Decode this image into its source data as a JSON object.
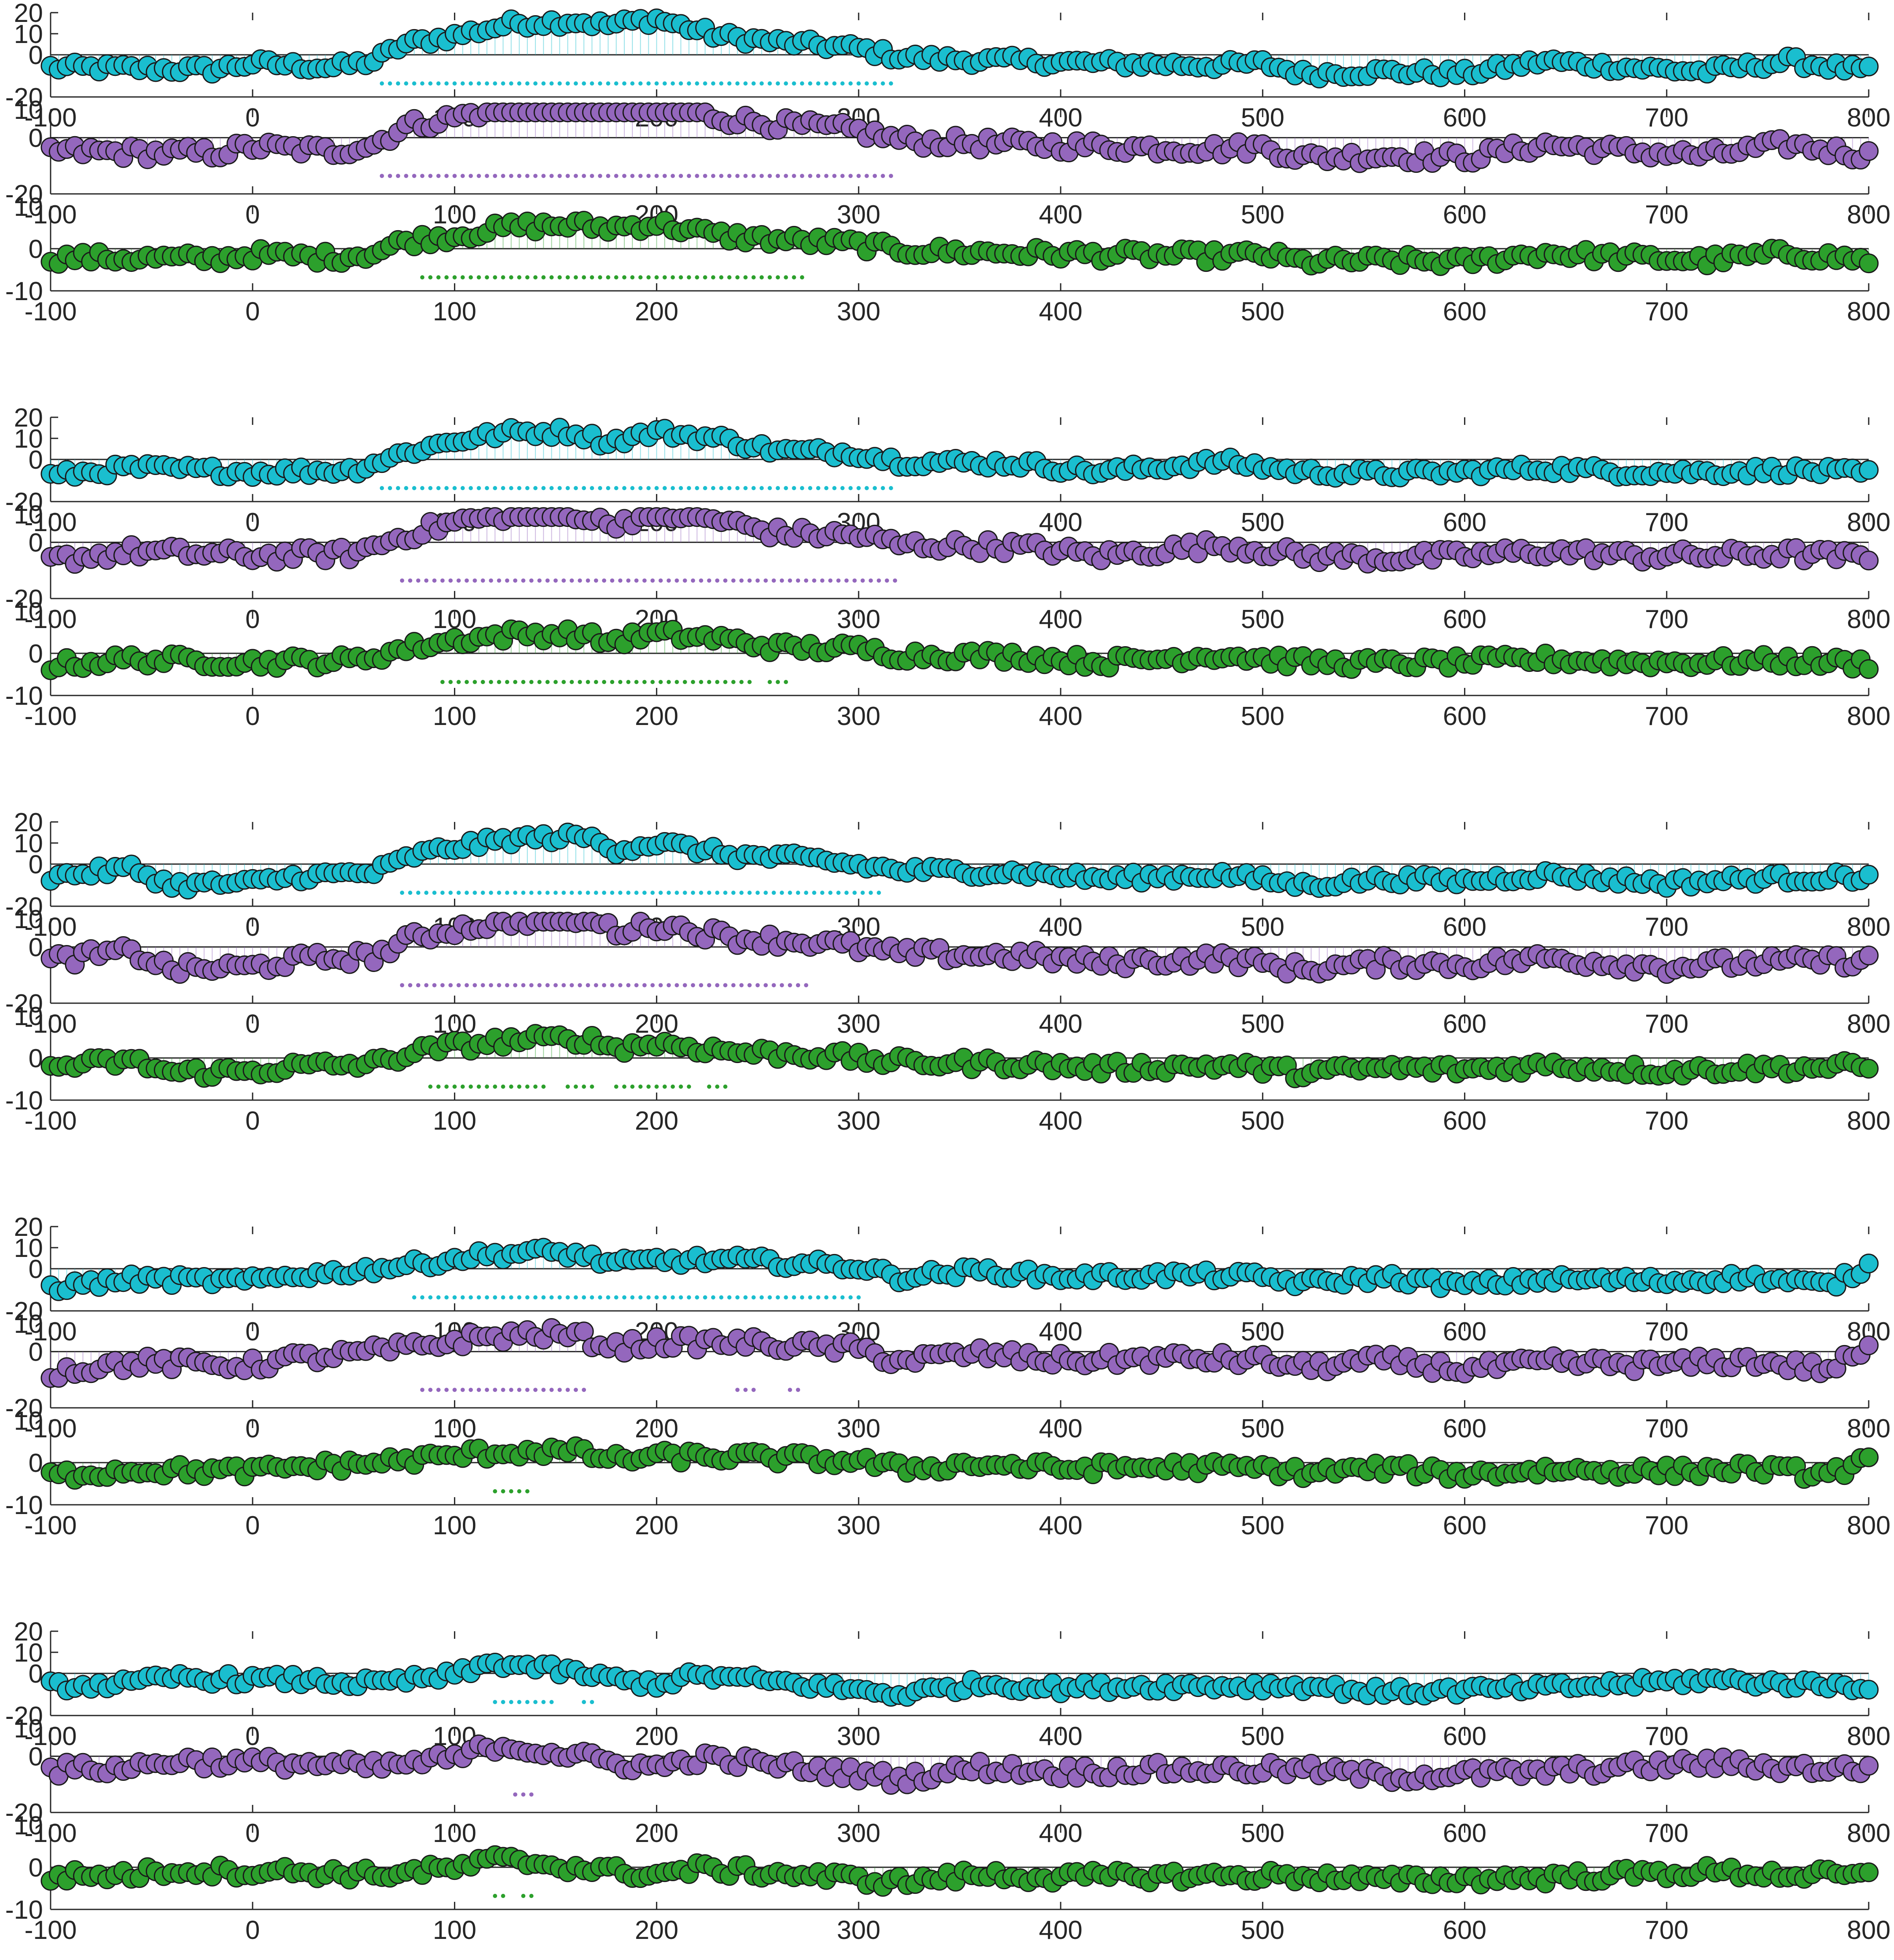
{
  "chart_data": {
    "type": "scatter",
    "layout": "5 groups x 3 stacked stem/scatter panels",
    "x_range": [
      -100,
      800
    ],
    "x_ticks": [
      -100,
      0,
      100,
      200,
      300,
      400,
      500,
      600,
      700,
      800
    ],
    "panel_types": [
      {
        "name": "",
        "color": "#1ABECF",
        "ylim": [
          -20,
          20
        ],
        "yticks": [
          -20,
          0,
          10,
          20
        ],
        "amp": 1.0
      },
      {
        "name": "",
        "color": "#9467BD",
        "ylim": [
          -20,
          10
        ],
        "yticks": [
          -20,
          0,
          10
        ],
        "amp": 0.8
      },
      {
        "name": "",
        "color": "#2CA02C",
        "ylim": [
          -10,
          10
        ],
        "yticks": [
          -10,
          0,
          10
        ],
        "amp": 0.35
      }
    ],
    "groups": [
      {
        "base": [
          [
            -100,
            -6
          ],
          [
            -20,
            -7
          ],
          [
            0,
            -4
          ],
          [
            40,
            -6
          ],
          [
            60,
            -3
          ],
          [
            75,
            5
          ],
          [
            100,
            9
          ],
          [
            130,
            15
          ],
          [
            160,
            16
          ],
          [
            175,
            14
          ],
          [
            200,
            17
          ],
          [
            230,
            9
          ],
          [
            260,
            6
          ],
          [
            300,
            3
          ],
          [
            320,
            -1
          ],
          [
            340,
            -2
          ],
          [
            380,
            -3
          ],
          [
            420,
            -4
          ],
          [
            480,
            -5
          ],
          [
            500,
            -4
          ],
          [
            520,
            -9
          ],
          [
            560,
            -8
          ],
          [
            600,
            -9
          ],
          [
            640,
            -3
          ],
          [
            680,
            -6
          ],
          [
            720,
            -8
          ],
          [
            760,
            -3
          ],
          [
            800,
            -8
          ]
        ],
        "sig": [
          [
            [
              64,
              318
            ]
          ],
          [
            [
              64,
              318
            ]
          ],
          [
            [
              84,
              272
            ]
          ]
        ]
      },
      {
        "base": [
          [
            -100,
            -8
          ],
          [
            -60,
            -4
          ],
          [
            0,
            -6
          ],
          [
            50,
            -5
          ],
          [
            75,
            3
          ],
          [
            100,
            9
          ],
          [
            130,
            13
          ],
          [
            160,
            13
          ],
          [
            175,
            8
          ],
          [
            200,
            13
          ],
          [
            230,
            10
          ],
          [
            260,
            4
          ],
          [
            300,
            3
          ],
          [
            320,
            -1
          ],
          [
            380,
            -2
          ],
          [
            420,
            -6
          ],
          [
            480,
            -1
          ],
          [
            520,
            -6
          ],
          [
            560,
            -7
          ],
          [
            600,
            -6
          ],
          [
            640,
            -4
          ],
          [
            680,
            -6
          ],
          [
            720,
            -6
          ],
          [
            760,
            -5
          ],
          [
            800,
            -7
          ]
        ],
        "sig": [
          [
            [
              64,
              318
            ]
          ],
          [
            [
              74,
              318
            ]
          ],
          [
            [
              94,
              246
            ],
            [
              256,
              264
            ]
          ]
        ]
      },
      {
        "base": [
          [
            -100,
            -6
          ],
          [
            -60,
            -2
          ],
          [
            -40,
            -10
          ],
          [
            0,
            -9
          ],
          [
            20,
            -6
          ],
          [
            60,
            -4
          ],
          [
            80,
            4
          ],
          [
            100,
            8
          ],
          [
            130,
            12
          ],
          [
            165,
            13
          ],
          [
            180,
            7
          ],
          [
            200,
            10
          ],
          [
            240,
            4
          ],
          [
            280,
            2
          ],
          [
            320,
            -3
          ],
          [
            380,
            -4
          ],
          [
            420,
            -7
          ],
          [
            480,
            -5
          ],
          [
            520,
            -10
          ],
          [
            560,
            -7
          ],
          [
            600,
            -8
          ],
          [
            640,
            -5
          ],
          [
            700,
            -9
          ],
          [
            740,
            -7
          ],
          [
            800,
            -6
          ]
        ],
        "sig": [
          [
            [
              74,
              310
            ]
          ],
          [
            [
              74,
              276
            ]
          ],
          [
            [
              88,
              146
            ],
            [
              156,
              170
            ],
            [
              180,
              216
            ],
            [
              226,
              236
            ]
          ]
        ]
      },
      {
        "base": [
          [
            -100,
            -9
          ],
          [
            -60,
            -5
          ],
          [
            0,
            -6
          ],
          [
            20,
            -3
          ],
          [
            40,
            -2
          ],
          [
            80,
            2
          ],
          [
            110,
            6
          ],
          [
            140,
            8
          ],
          [
            160,
            7
          ],
          [
            180,
            2
          ],
          [
            200,
            4
          ],
          [
            240,
            4
          ],
          [
            280,
            2
          ],
          [
            300,
            1
          ],
          [
            320,
            -4
          ],
          [
            360,
            -1
          ],
          [
            400,
            -4
          ],
          [
            460,
            -3
          ],
          [
            500,
            -4
          ],
          [
            520,
            -7
          ],
          [
            560,
            -4
          ],
          [
            600,
            -8
          ],
          [
            640,
            -5
          ],
          [
            700,
            -6
          ],
          [
            740,
            -4
          ],
          [
            780,
            -8
          ],
          [
            800,
            1
          ]
        ],
        "sig": [
          [
            [
              80,
              300
            ]
          ],
          [
            [
              84,
              166
            ],
            [
              240,
              250
            ],
            [
              266,
              272
            ]
          ],
          [
            [
              120,
              136
            ]
          ]
        ]
      },
      {
        "base": [
          [
            -100,
            -6
          ],
          [
            -60,
            -5
          ],
          [
            -40,
            -2
          ],
          [
            0,
            -3
          ],
          [
            20,
            -3
          ],
          [
            60,
            -5
          ],
          [
            100,
            -1
          ],
          [
            120,
            5
          ],
          [
            140,
            3
          ],
          [
            160,
            0
          ],
          [
            180,
            -3
          ],
          [
            200,
            -5
          ],
          [
            220,
            -1
          ],
          [
            260,
            -4
          ],
          [
            300,
            -8
          ],
          [
            320,
            -10
          ],
          [
            360,
            -5
          ],
          [
            400,
            -7
          ],
          [
            440,
            -6
          ],
          [
            480,
            -6
          ],
          [
            520,
            -6
          ],
          [
            560,
            -9
          ],
          [
            600,
            -8
          ],
          [
            640,
            -7
          ],
          [
            680,
            -5
          ],
          [
            720,
            -3
          ],
          [
            760,
            -5
          ],
          [
            800,
            -6
          ]
        ],
        "sig": [
          [
            [
              120,
              148
            ],
            [
              164,
              170
            ]
          ],
          [
            [
              130,
              140
            ]
          ],
          [
            [
              120,
              124
            ],
            [
              134,
              140
            ]
          ]
        ]
      }
    ]
  }
}
